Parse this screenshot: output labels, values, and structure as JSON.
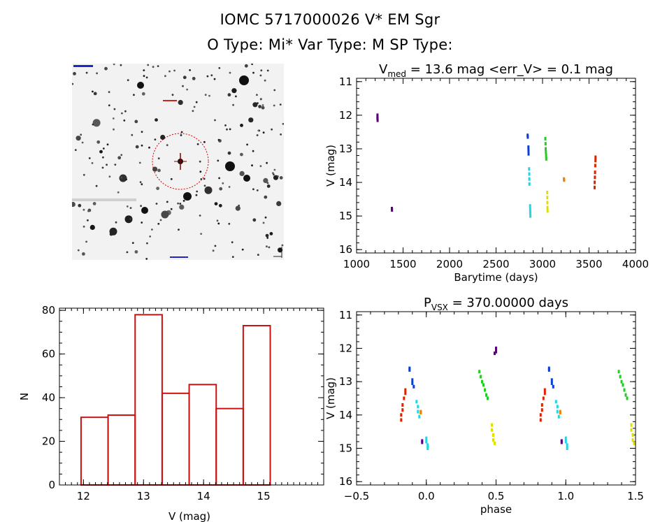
{
  "header": {
    "line1": "IOMC 5717000026    V* EM Sgr",
    "line2": "O Type: Mi*  Var Type: M  SP Type:"
  },
  "sky_image": {
    "circle_color": "#cc0000",
    "marker_color": "#800000"
  },
  "chart_data": [
    {
      "id": "lightcurve",
      "type": "scatter",
      "title": "V_med = 13.6 mag <err_V> = 0.1 mag",
      "title_parts": {
        "v": "V",
        "sub": "med",
        "rest": " = 13.6 mag <err_V> = 0.1 mag"
      },
      "xlabel": "Barytime (days)",
      "ylabel": "V (mag)",
      "xlim": [
        1000,
        4000
      ],
      "ylim": [
        16.1,
        10.9
      ],
      "xticks": [
        1000,
        1500,
        2000,
        2500,
        3000,
        3500,
        4000
      ],
      "yticks": [
        11,
        12,
        13,
        14,
        15,
        16
      ],
      "series": [
        {
          "color": "#5a0078",
          "points": [
            [
              1225,
              12.0
            ],
            [
              1225,
              12.05
            ],
            [
              1225,
              12.1
            ],
            [
              1226,
              12.15
            ],
            [
              1380,
              14.78
            ],
            [
              1381,
              14.82
            ]
          ]
        },
        {
          "color": "#0a3fd6",
          "points": [
            [
              2840,
              12.6
            ],
            [
              2841,
              12.65
            ],
            [
              2848,
              12.95
            ],
            [
              2849,
              13.05
            ],
            [
              2850,
              13.15
            ]
          ]
        },
        {
          "color": "#22d4e6",
          "points": [
            [
              2856,
              13.6
            ],
            [
              2857,
              13.75
            ],
            [
              2858,
              13.9
            ],
            [
              2859,
              14.05
            ],
            [
              2866,
              14.7
            ],
            [
              2867,
              14.8
            ],
            [
              2868,
              14.9
            ],
            [
              2869,
              15.0
            ]
          ]
        },
        {
          "color": "#22cc22",
          "points": [
            [
              3030,
              12.7
            ],
            [
              3032,
              12.85
            ],
            [
              3034,
              13.0
            ],
            [
              3036,
              13.1
            ],
            [
              3038,
              13.2
            ],
            [
              3040,
              13.3
            ]
          ]
        },
        {
          "color": "#e0e000",
          "points": [
            [
              3050,
              14.3
            ],
            [
              3051,
              14.45
            ],
            [
              3052,
              14.6
            ],
            [
              3053,
              14.75
            ],
            [
              3054,
              14.85
            ]
          ]
        },
        {
          "color": "#f08000",
          "points": [
            [
              3230,
              13.9
            ],
            [
              3232,
              13.93
            ]
          ]
        },
        {
          "color": "#dd2200",
          "points": [
            [
              3560,
              14.15
            ],
            [
              3561,
              14.0
            ],
            [
              3563,
              13.85
            ],
            [
              3565,
              13.7
            ],
            [
              3567,
              13.5
            ],
            [
              3569,
              13.35
            ],
            [
              3570,
              13.25
            ]
          ]
        }
      ]
    },
    {
      "id": "histogram",
      "type": "bar",
      "xlabel": "V (mag)",
      "ylabel": "N",
      "xlim": [
        11.6,
        16.0
      ],
      "ylim": [
        0,
        81
      ],
      "xticks": [
        12,
        13,
        14,
        15
      ],
      "yticks": [
        0,
        20,
        40,
        60,
        80
      ],
      "bar_color": "#cc1111",
      "bins": [
        {
          "x0": 11.96,
          "x1": 12.41,
          "value": 31
        },
        {
          "x0": 12.41,
          "x1": 12.86,
          "value": 32
        },
        {
          "x0": 12.86,
          "x1": 13.31,
          "value": 78
        },
        {
          "x0": 13.31,
          "x1": 13.76,
          "value": 42
        },
        {
          "x0": 13.76,
          "x1": 14.21,
          "value": 46
        },
        {
          "x0": 14.21,
          "x1": 14.66,
          "value": 35
        },
        {
          "x0": 14.66,
          "x1": 15.11,
          "value": 73
        }
      ]
    },
    {
      "id": "phased",
      "type": "scatter",
      "title": "P_VSX = 370.00000 days",
      "title_parts": {
        "v": "P",
        "sub": "VSX",
        "rest": " = 370.00000 days"
      },
      "xlabel": "phase",
      "ylabel": "V (mag)",
      "xlim": [
        -0.5,
        1.5
      ],
      "ylim": [
        16.1,
        10.9
      ],
      "xticks": [
        -0.5,
        0.0,
        0.5,
        1.0,
        1.5
      ],
      "xtick_labels": [
        "−0.5",
        "0.0",
        "0.5",
        "1.0",
        "1.5"
      ],
      "yticks": [
        11,
        12,
        13,
        14,
        15,
        16
      ],
      "series": [
        {
          "color": "#5a0078",
          "points": [
            [
              0.5,
              12.0
            ],
            [
              0.5,
              12.05
            ],
            [
              0.5,
              12.1
            ],
            [
              0.49,
              12.15
            ],
            [
              -0.03,
              14.78
            ],
            [
              -0.03,
              14.82
            ],
            [
              0.97,
              14.78
            ],
            [
              0.97,
              14.82
            ]
          ]
        },
        {
          "color": "#0a3fd6",
          "points": [
            [
              -0.12,
              12.6
            ],
            [
              -0.12,
              12.65
            ],
            [
              -0.1,
              12.95
            ],
            [
              -0.1,
              13.05
            ],
            [
              -0.09,
              13.15
            ],
            [
              0.88,
              12.6
            ],
            [
              0.88,
              12.65
            ],
            [
              0.9,
              12.95
            ],
            [
              0.9,
              13.05
            ],
            [
              0.91,
              13.15
            ]
          ]
        },
        {
          "color": "#22d4e6",
          "points": [
            [
              -0.07,
              13.6
            ],
            [
              -0.06,
              13.75
            ],
            [
              -0.06,
              13.9
            ],
            [
              -0.05,
              14.05
            ],
            [
              0.0,
              14.7
            ],
            [
              0.0,
              14.8
            ],
            [
              0.01,
              14.9
            ],
            [
              0.01,
              15.0
            ],
            [
              0.93,
              13.6
            ],
            [
              0.94,
              13.75
            ],
            [
              0.94,
              13.9
            ],
            [
              0.95,
              14.05
            ],
            [
              1.0,
              14.7
            ],
            [
              1.0,
              14.8
            ],
            [
              1.01,
              14.9
            ],
            [
              1.01,
              15.0
            ]
          ]
        },
        {
          "color": "#22cc22",
          "points": [
            [
              0.38,
              12.7
            ],
            [
              0.39,
              12.85
            ],
            [
              0.4,
              13.0
            ],
            [
              0.41,
              13.1
            ],
            [
              0.42,
              13.25
            ],
            [
              0.43,
              13.4
            ],
            [
              0.44,
              13.5
            ],
            [
              1.38,
              12.7
            ],
            [
              1.39,
              12.85
            ],
            [
              1.4,
              13.0
            ],
            [
              1.41,
              13.1
            ],
            [
              1.42,
              13.25
            ],
            [
              1.43,
              13.4
            ],
            [
              1.44,
              13.5
            ]
          ]
        },
        {
          "color": "#e0e000",
          "points": [
            [
              0.47,
              14.3
            ],
            [
              0.47,
              14.45
            ],
            [
              0.48,
              14.6
            ],
            [
              0.48,
              14.75
            ],
            [
              0.49,
              14.85
            ],
            [
              1.47,
              14.3
            ],
            [
              1.47,
              14.45
            ],
            [
              1.48,
              14.6
            ],
            [
              1.48,
              14.75
            ],
            [
              1.49,
              14.85
            ]
          ]
        },
        {
          "color": "#f08000",
          "points": [
            [
              -0.04,
              13.9
            ],
            [
              -0.04,
              13.93
            ],
            [
              0.96,
              13.9
            ],
            [
              0.96,
              13.93
            ]
          ]
        },
        {
          "color": "#dd2200",
          "points": [
            [
              -0.18,
              14.15
            ],
            [
              -0.18,
              14.0
            ],
            [
              -0.17,
              13.85
            ],
            [
              -0.17,
              13.7
            ],
            [
              -0.16,
              13.5
            ],
            [
              -0.15,
              13.35
            ],
            [
              -0.15,
              13.25
            ],
            [
              0.82,
              14.15
            ],
            [
              0.82,
              14.0
            ],
            [
              0.83,
              13.85
            ],
            [
              0.83,
              13.7
            ],
            [
              0.84,
              13.5
            ],
            [
              0.85,
              13.35
            ],
            [
              0.85,
              13.25
            ]
          ]
        }
      ]
    }
  ]
}
